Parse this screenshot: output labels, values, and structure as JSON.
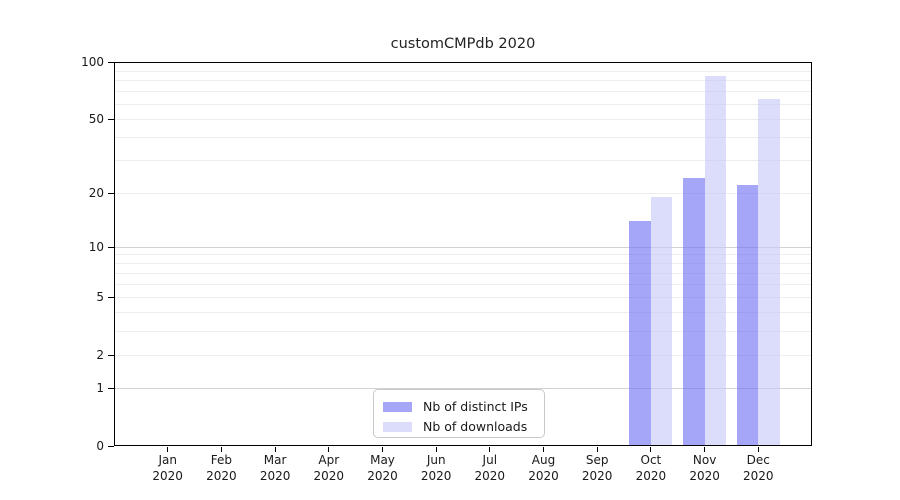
{
  "chart_data": {
    "type": "bar",
    "title": "customCMPdb 2020",
    "x_tick_months": [
      "Jan",
      "Feb",
      "Mar",
      "Apr",
      "May",
      "Jun",
      "Jul",
      "Aug",
      "Sep",
      "Oct",
      "Nov",
      "Dec"
    ],
    "x_tick_year": "2020",
    "series": [
      {
        "name": "Nb of distinct IPs",
        "color_hex": "#6f6ff5",
        "alpha": 0.62,
        "values": [
          0,
          0,
          0,
          0,
          0,
          0,
          0,
          0,
          0,
          14,
          24,
          22
        ]
      },
      {
        "name": "Nb of downloads",
        "color_hex": "#c6c6f8",
        "alpha": 0.62,
        "values": [
          0,
          0,
          0,
          0,
          0,
          0,
          0,
          0,
          0,
          19,
          84,
          64
        ]
      }
    ],
    "y_axis": {
      "scale": "log1p",
      "ylim": [
        0,
        100
      ],
      "tick_labels": [
        0,
        1,
        2,
        5,
        10,
        20,
        50,
        100
      ],
      "grid_major": [
        1,
        10,
        100
      ],
      "grid_minor": [
        2,
        3,
        4,
        5,
        6,
        7,
        8,
        9,
        20,
        30,
        40,
        50,
        60,
        70,
        80,
        90
      ]
    },
    "legend": {
      "position": "bottom-center"
    },
    "style": {
      "background": "#ffffff",
      "axis_color": "#000000",
      "text_color": "#1a1a1a",
      "grid_major_color": "#d2d2d2",
      "grid_minor_color": "#ededed",
      "legend_border_color": "#c9c9c9"
    }
  }
}
